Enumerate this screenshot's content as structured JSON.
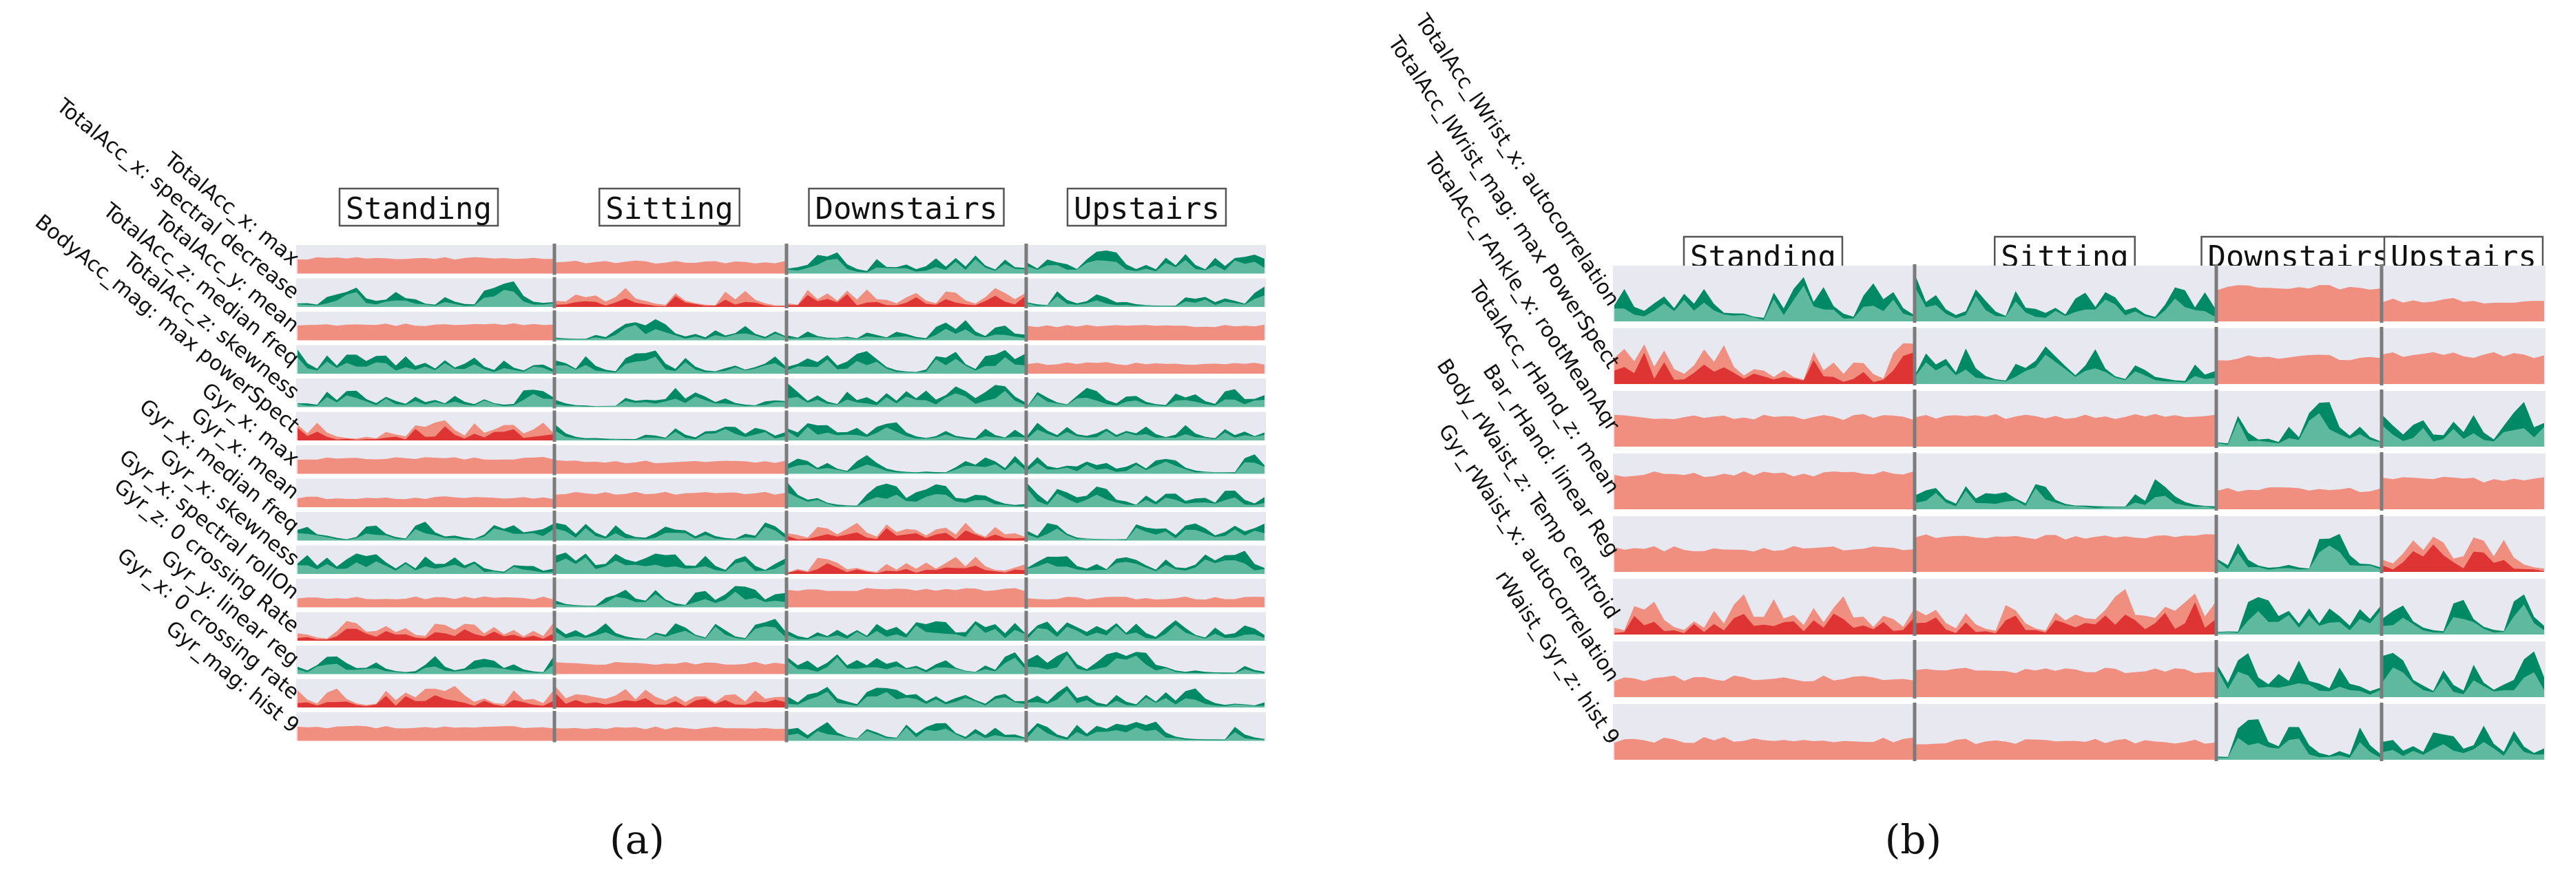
{
  "colors": {
    "row_bg": "#e8e8f1",
    "green_dark": "#008965",
    "green_mid": "#2da683",
    "green_light": "#6fc2a8",
    "salmon": "#f08f80",
    "salmon_light": "#f4a698",
    "red": "#dc2a2a",
    "red_dark": "#b5131b",
    "separator": "#7b7b7b",
    "label_box_border": "#555555"
  },
  "chart_data": [
    {
      "type": "area",
      "panel": "(a)",
      "title": "",
      "activities": [
        "Standing",
        "Sitting",
        "Downstairs",
        "Upstairs"
      ],
      "features": [
        "TotalAcc_x: max",
        "TotalAcc_x: spectral decrease",
        "TotalAcc_y: mean",
        "TotalAcc_z: median freq",
        "TotalAcc_z: skewness",
        "BodyAcc_mag: max powerSpect",
        "Gyr_x: max",
        "Gyr_x: mean",
        "Gyr_x: median freq",
        "Gyr_x: skewness",
        "Gyr_x: spectral rollOn",
        "Gyr_z: 0 crossing Rate",
        "Gyr_y: linear reg",
        "Gyr_x: 0 crossing rate",
        "Gyr_mag: hist 9"
      ],
      "row_patterns": [
        [
          "S",
          "S",
          "G",
          "G"
        ],
        [
          "G",
          "M",
          "M",
          "M"
        ],
        [
          "S",
          "G",
          "G",
          "S"
        ],
        [
          "G",
          "M",
          "M",
          "S"
        ],
        [
          "M",
          "M",
          "M",
          "G"
        ],
        [
          "M",
          "M",
          "M",
          "M"
        ],
        [
          "S",
          "S",
          "G",
          "G"
        ],
        [
          "S",
          "S",
          "M",
          "M"
        ],
        [
          "M",
          "M",
          "M",
          "M"
        ],
        [
          "M",
          "M",
          "M",
          "G"
        ],
        [
          "S",
          "G",
          "S",
          "S"
        ],
        [
          "M",
          "M",
          "M",
          "M"
        ],
        [
          "G",
          "S",
          "G",
          "M"
        ],
        [
          "M",
          "M",
          "G",
          "G"
        ],
        [
          "S",
          "S",
          "G",
          "G"
        ]
      ]
    },
    {
      "type": "area",
      "panel": "(b)",
      "title": "",
      "activities": [
        "Standing",
        "Sitting",
        "Downstairs",
        "Upstairs"
      ],
      "features": [
        "TotalAcc_lWrist_x: autocorrelation",
        "TotalAcc_lWrist_mag: max PowerSpect",
        "TotalAcc_rAnkle_x: rootMeanAqr",
        "TotalAcc_rHand_z: mean",
        "Bar_rHand: linear Reg",
        "Body_rWaist_z: Temp centroid",
        "Gyr_rWaist_x: autocorrelation",
        "rWaist_Gyr_z: hist 9"
      ],
      "row_patterns": [
        [
          "G",
          "G",
          "S",
          "S"
        ],
        [
          "M",
          "G",
          "S",
          "S"
        ],
        [
          "S",
          "S",
          "G",
          "G"
        ],
        [
          "S",
          "G",
          "S",
          "S"
        ],
        [
          "S",
          "S",
          "G",
          "M"
        ],
        [
          "M",
          "M",
          "M",
          "M"
        ],
        [
          "S",
          "S",
          "G",
          "G"
        ],
        [
          "S",
          "S",
          "G",
          "G"
        ]
      ]
    }
  ],
  "subfigure_labels": [
    "(a)",
    "(b)"
  ]
}
